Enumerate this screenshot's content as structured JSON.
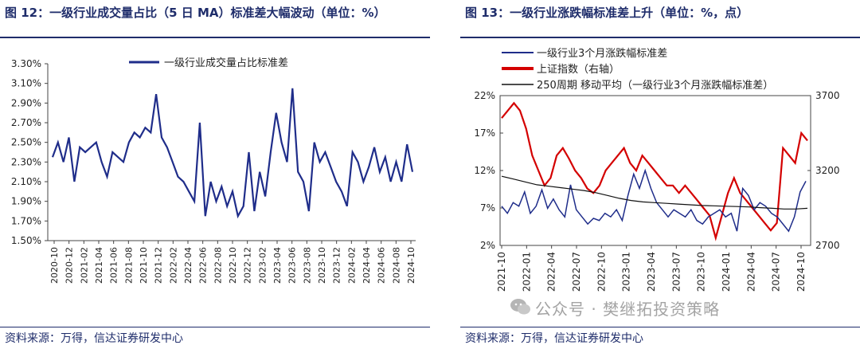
{
  "left": {
    "title": "图 12：一级行业成交量占比（5 日 MA）标准差大幅波动（单位：%）",
    "source": "资料来源：万得，信达证券研发中心"
  },
  "right": {
    "title": "图 13：一级行业涨跌幅标准差上升（单位：%，点）",
    "source": "资料来源：万得，信达证券研发中心"
  },
  "watermark": "公众号 · 樊继拓投资策略",
  "chart_data": [
    {
      "type": "line",
      "ylim": [
        1.5,
        3.3
      ],
      "yticks": [
        "1.50%",
        "1.70%",
        "1.90%",
        "2.10%",
        "2.30%",
        "2.50%",
        "2.70%",
        "2.90%",
        "3.10%",
        "3.30%"
      ],
      "xticks": [
        "2020-10",
        "2020-12",
        "2021-02",
        "2021-04",
        "2021-06",
        "2021-08",
        "2021-10",
        "2021-12",
        "2022-02",
        "2022-04",
        "2022-06",
        "2022-08",
        "2022-10",
        "2022-12",
        "2023-02",
        "2023-04",
        "2023-06",
        "2023-08",
        "2023-10",
        "2023-12",
        "2024-02",
        "2024-04",
        "2024-06",
        "2024-08",
        "2024-10"
      ],
      "legend_position": "top-center",
      "grid": false,
      "series": [
        {
          "name": "一级行业成交量占比标准差",
          "color": "#1f2d8a",
          "values": [
            2.35,
            2.5,
            2.3,
            2.55,
            2.1,
            2.45,
            2.4,
            2.45,
            2.5,
            2.3,
            2.15,
            2.4,
            2.35,
            2.3,
            2.5,
            2.6,
            2.55,
            2.65,
            2.6,
            2.99,
            2.55,
            2.45,
            2.3,
            2.15,
            2.1,
            2.0,
            1.9,
            2.7,
            1.75,
            2.1,
            1.9,
            2.05,
            1.85,
            2.0,
            1.75,
            1.85,
            2.4,
            1.8,
            2.2,
            1.95,
            2.4,
            2.8,
            2.5,
            2.3,
            3.05,
            2.2,
            2.1,
            1.8,
            2.5,
            2.3,
            2.4,
            2.25,
            2.1,
            2.0,
            1.85,
            2.4,
            2.3,
            2.1,
            2.25,
            2.45,
            2.2,
            2.35,
            2.1,
            2.3,
            2.1,
            2.48,
            2.2
          ]
        }
      ]
    },
    {
      "type": "line",
      "ylim_left": [
        2,
        23
      ],
      "ylim_right": [
        2700,
        3700
      ],
      "yticks_left": [
        "2%",
        "7%",
        "12%",
        "17%",
        "22%"
      ],
      "yticks_right": [
        "2700",
        "3200",
        "3700"
      ],
      "xticks": [
        "2021-10",
        "2022-01",
        "2022-04",
        "2022-07",
        "2022-10",
        "2023-01",
        "2023-04",
        "2023-07",
        "2023-10",
        "2024-01",
        "2024-04",
        "2024-07",
        "2024-10"
      ],
      "legend_position": "top-left",
      "grid": false,
      "series": [
        {
          "name": "一级行业3个月涨跌幅标准差",
          "color": "#1f2d8a",
          "axis": "left",
          "values": [
            7.5,
            6.5,
            8,
            7.5,
            9.5,
            6.5,
            7.5,
            9.8,
            7.2,
            8.5,
            7,
            6,
            10.5,
            7,
            6,
            5,
            5.8,
            5.5,
            6.5,
            6,
            7,
            5.5,
            9,
            12,
            10,
            12.5,
            10,
            8,
            7,
            6,
            7,
            6.5,
            6,
            7,
            5.5,
            5,
            6,
            6.5,
            7,
            6,
            6.5,
            4,
            10,
            9,
            7,
            8,
            7.5,
            6.5,
            6,
            5,
            4,
            6,
            9.5,
            11
          ]
        },
        {
          "name": "上证指数（右轴）",
          "color": "#d40000",
          "axis": "right",
          "values": [
            3550,
            3600,
            3650,
            3600,
            3480,
            3300,
            3200,
            3100,
            3150,
            3300,
            3350,
            3280,
            3200,
            3150,
            3080,
            3050,
            3100,
            3200,
            3250,
            3300,
            3350,
            3250,
            3200,
            3300,
            3250,
            3200,
            3150,
            3100,
            3100,
            3050,
            3100,
            3050,
            3000,
            2950,
            2900,
            2750,
            2900,
            3050,
            3150,
            3050,
            3000,
            2950,
            2900,
            2850,
            2800,
            2850,
            3350,
            3300,
            3250,
            3450,
            3400
          ]
        },
        {
          "name": "250周期 移动平均（一级行业3个月涨跌幅标准差）",
          "color": "#111111",
          "axis": "left",
          "values": [
            11.7,
            11.3,
            10.9,
            10.5,
            10.3,
            10.1,
            9.9,
            9.7,
            9.4,
            9.0,
            8.6,
            8.3,
            8.1,
            8.0,
            7.9,
            7.8,
            7.7,
            7.6,
            7.55,
            7.5,
            7.45,
            7.4,
            7.3,
            7.2,
            7.1,
            7.1,
            7.2
          ]
        }
      ]
    }
  ]
}
